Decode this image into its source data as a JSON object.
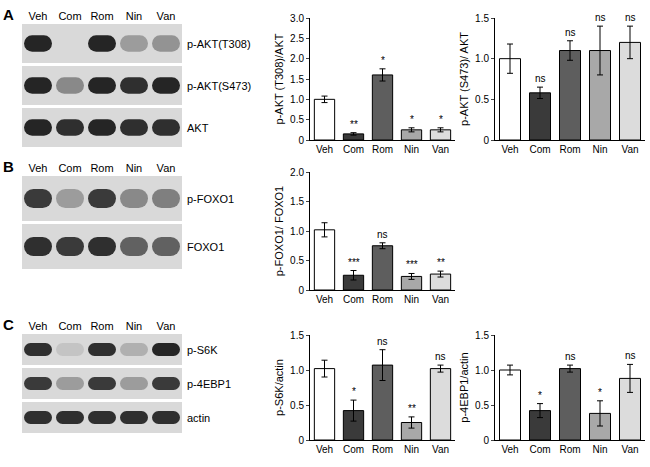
{
  "blots": [
    {
      "letter": "A",
      "lanes": [
        "Veh",
        "Com",
        "Rom",
        "Nin",
        "Van"
      ],
      "rows": [
        {
          "label": "p-AKT(T308)",
          "bands": [
            0.9,
            0.0,
            0.9,
            0.3,
            0.35
          ]
        },
        {
          "label": "p-AKT(S473)",
          "bands": [
            0.9,
            0.4,
            0.9,
            0.85,
            0.9
          ]
        },
        {
          "label": "AKT",
          "bands": [
            0.9,
            0.85,
            0.9,
            0.85,
            0.85
          ]
        }
      ]
    },
    {
      "letter": "B",
      "lanes": [
        "Veh",
        "Com",
        "Rom",
        "Nin",
        "Van"
      ],
      "rows": [
        {
          "label": "p-FOXO1",
          "bands": [
            0.8,
            0.3,
            0.8,
            0.4,
            0.45
          ]
        },
        {
          "label": "FOXO1",
          "bands": [
            0.85,
            0.8,
            0.85,
            0.6,
            0.6
          ]
        }
      ]
    },
    {
      "letter": "C",
      "lanes": [
        "Veh",
        "Com",
        "Rom",
        "Nin",
        "Van"
      ],
      "rows": [
        {
          "label": "p-S6K",
          "bands": [
            0.85,
            0.1,
            0.85,
            0.2,
            0.9
          ]
        },
        {
          "label": "p-4EBP1",
          "bands": [
            0.8,
            0.3,
            0.8,
            0.3,
            0.8
          ]
        },
        {
          "label": "actin",
          "bands": [
            0.85,
            0.85,
            0.85,
            0.85,
            0.85
          ]
        }
      ]
    }
  ],
  "chart_data": [
    {
      "type": "bar",
      "y_label": "p-AKT (T308)/AKT",
      "categories": [
        "Veh",
        "Com",
        "Rom",
        "Nin",
        "Van"
      ],
      "values": [
        1.0,
        0.15,
        1.6,
        0.25,
        0.25
      ],
      "errors": [
        0.08,
        0.03,
        0.15,
        0.05,
        0.05
      ],
      "annotations": [
        null,
        "**",
        "*",
        "*",
        "*"
      ],
      "colors": [
        "#ffffff",
        "#3a3a3a",
        "#5e5e5e",
        "#a8a8a8",
        "#dcdcdc"
      ],
      "ylim": [
        0,
        3
      ],
      "yticks": [
        0,
        0.5,
        {
          "value": 1,
          "label": "1.0"
        },
        1.5,
        {
          "value": 2,
          "label": "2.0"
        },
        2.5,
        {
          "value": 3,
          "label": "3.0"
        }
      ]
    },
    {
      "type": "bar",
      "y_label": "p-AKT (S473)/ AKT",
      "categories": [
        "Veh",
        "Com",
        "Rom",
        "Nin",
        "Van"
      ],
      "values": [
        1.0,
        0.58,
        1.1,
        1.1,
        1.2
      ],
      "errors": [
        0.18,
        0.07,
        0.12,
        0.3,
        0.2
      ],
      "annotations": [
        null,
        "ns",
        "ns",
        "ns",
        "ns"
      ],
      "colors": [
        "#ffffff",
        "#3a3a3a",
        "#5e5e5e",
        "#a8a8a8",
        "#dcdcdc"
      ],
      "ylim": [
        0,
        1.5
      ],
      "yticks": [
        0,
        0.5,
        {
          "value": 1,
          "label": "1.0"
        },
        1.5
      ]
    },
    {
      "type": "bar",
      "y_label": "p-FOXO1/ FOXO1",
      "categories": [
        "Veh",
        "Com",
        "Rom",
        "Nin",
        "Van"
      ],
      "values": [
        1.02,
        0.25,
        0.75,
        0.23,
        0.27
      ],
      "errors": [
        0.12,
        0.08,
        0.05,
        0.05,
        0.05
      ],
      "annotations": [
        null,
        "***",
        "ns",
        "***",
        "**"
      ],
      "colors": [
        "#ffffff",
        "#3a3a3a",
        "#5e5e5e",
        "#a8a8a8",
        "#dcdcdc"
      ],
      "ylim": [
        0,
        2
      ],
      "yticks": [
        0,
        0.5,
        {
          "value": 1,
          "label": "1.0"
        },
        1.5,
        {
          "value": 2,
          "label": "2.0"
        }
      ]
    },
    {
      "type": "bar",
      "y_label": "p-S6K/actin",
      "categories": [
        "Veh",
        "Com",
        "Rom",
        "Nin",
        "Van"
      ],
      "values": [
        1.02,
        0.42,
        1.07,
        0.25,
        1.02
      ],
      "errors": [
        0.12,
        0.15,
        0.22,
        0.08,
        0.05
      ],
      "annotations": [
        null,
        "*",
        "ns",
        "**",
        "ns"
      ],
      "colors": [
        "#ffffff",
        "#3a3a3a",
        "#5e5e5e",
        "#a8a8a8",
        "#dcdcdc"
      ],
      "ylim": [
        0,
        1.5
      ],
      "yticks": [
        0,
        0.5,
        {
          "value": 1,
          "label": "1.0"
        },
        1.5
      ]
    },
    {
      "type": "bar",
      "y_label": "p-4EBP1/actin",
      "categories": [
        "Veh",
        "Com",
        "Rom",
        "Nin",
        "Van"
      ],
      "values": [
        1.0,
        0.42,
        1.02,
        0.38,
        0.88
      ],
      "errors": [
        0.07,
        0.1,
        0.05,
        0.18,
        0.2
      ],
      "annotations": [
        null,
        "*",
        "ns",
        "*",
        "ns"
      ],
      "colors": [
        "#ffffff",
        "#3a3a3a",
        "#5e5e5e",
        "#a8a8a8",
        "#dcdcdc"
      ],
      "ylim": [
        0,
        1.5
      ],
      "yticks": [
        0,
        0.5,
        {
          "value": 1,
          "label": "1.0"
        },
        1.5
      ]
    }
  ]
}
